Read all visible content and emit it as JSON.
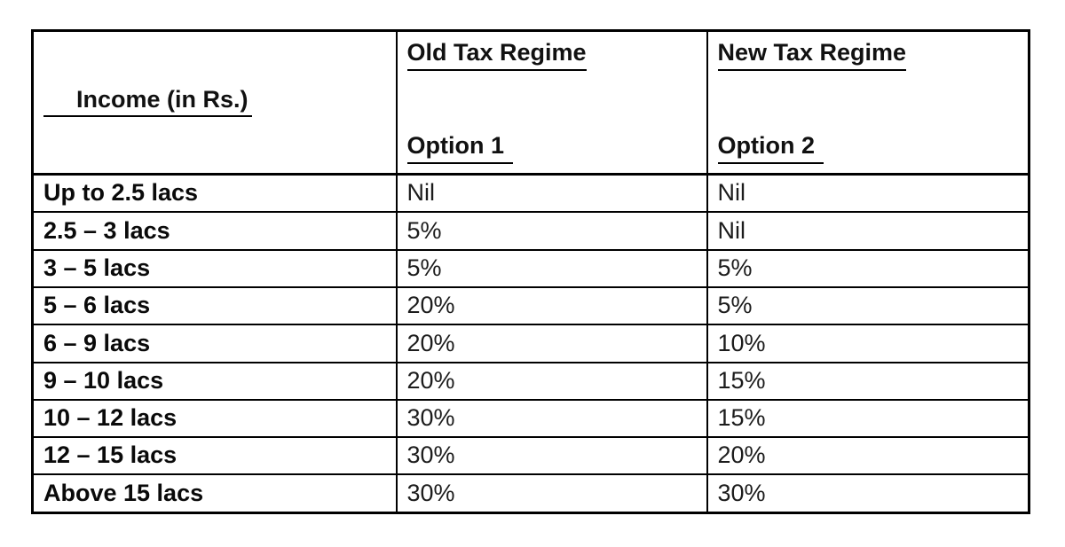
{
  "table": {
    "header": {
      "income_label": "Income (in Rs.)",
      "old_regime_title": "Old Tax Regime",
      "old_regime_subtitle": "Option 1",
      "new_regime_title": "New Tax Regime",
      "new_regime_subtitle": "Option 2"
    },
    "rows": [
      {
        "income": "Up to 2.5 lacs",
        "old_rate": "Nil",
        "new_rate": "Nil"
      },
      {
        "income": "2.5 – 3 lacs",
        "old_rate": "5%",
        "new_rate": "Nil"
      },
      {
        "income": "3 – 5 lacs",
        "old_rate": "5%",
        "new_rate": "5%"
      },
      {
        "income": "5 – 6 lacs",
        "old_rate": "20%",
        "new_rate": "5%"
      },
      {
        "income": "6 – 9 lacs",
        "old_rate": "20%",
        "new_rate": "10%"
      },
      {
        "income": "9 – 10 lacs",
        "old_rate": "20%",
        "new_rate": "15%"
      },
      {
        "income": "10 – 12 lacs",
        "old_rate": "30%",
        "new_rate": "15%"
      },
      {
        "income": "12 – 15 lacs",
        "old_rate": "30%",
        "new_rate": "20%"
      },
      {
        "income": "Above 15 lacs",
        "old_rate": "30%",
        "new_rate": "30%"
      }
    ],
    "colors": {
      "border": "#000000",
      "text": "#111111",
      "background": "#ffffff"
    }
  }
}
